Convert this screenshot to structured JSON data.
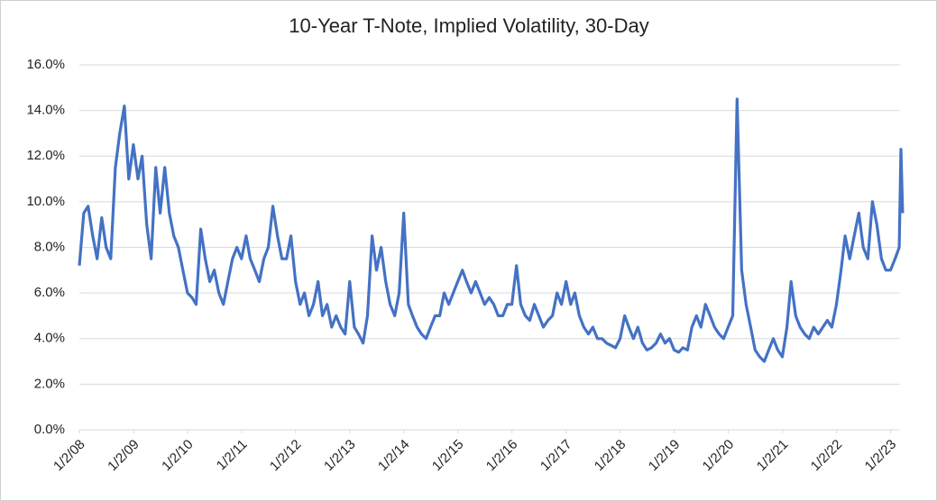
{
  "chart_data": {
    "type": "line",
    "title": "10-Year T-Note, Implied Volatility, 30-Day",
    "color": "#4472c4",
    "grid": true,
    "x": [
      "2008-01-02",
      "2008-02-01",
      "2008-03-01",
      "2008-04-01",
      "2008-05-01",
      "2008-06-01",
      "2008-07-01",
      "2008-08-01",
      "2008-09-01",
      "2008-10-01",
      "2008-11-01",
      "2008-12-01",
      "2009-01-01",
      "2009-02-01",
      "2009-03-01",
      "2009-04-01",
      "2009-05-01",
      "2009-06-01",
      "2009-07-01",
      "2009-08-01",
      "2009-09-01",
      "2009-10-01",
      "2009-11-01",
      "2009-12-01",
      "2010-01-01",
      "2010-02-01",
      "2010-03-01",
      "2010-04-01",
      "2010-05-01",
      "2010-06-01",
      "2010-07-01",
      "2010-08-01",
      "2010-09-01",
      "2010-10-01",
      "2010-11-01",
      "2010-12-01",
      "2011-01-01",
      "2011-02-01",
      "2011-03-01",
      "2011-04-01",
      "2011-05-01",
      "2011-06-01",
      "2011-07-01",
      "2011-08-01",
      "2011-09-01",
      "2011-10-01",
      "2011-11-01",
      "2011-12-01",
      "2012-01-01",
      "2012-02-01",
      "2012-03-01",
      "2012-04-01",
      "2012-05-01",
      "2012-06-01",
      "2012-07-01",
      "2012-08-01",
      "2012-09-01",
      "2012-10-01",
      "2012-11-01",
      "2012-12-01",
      "2013-01-01",
      "2013-02-01",
      "2013-03-01",
      "2013-04-01",
      "2013-05-01",
      "2013-06-01",
      "2013-07-01",
      "2013-08-01",
      "2013-09-01",
      "2013-10-01",
      "2013-11-01",
      "2013-12-01",
      "2014-01-01",
      "2014-02-01",
      "2014-03-01",
      "2014-04-01",
      "2014-05-01",
      "2014-06-01",
      "2014-07-01",
      "2014-08-01",
      "2014-09-01",
      "2014-10-01",
      "2014-11-01",
      "2014-12-01",
      "2015-01-01",
      "2015-02-01",
      "2015-03-01",
      "2015-04-01",
      "2015-05-01",
      "2015-06-01",
      "2015-07-01",
      "2015-08-01",
      "2015-09-01",
      "2015-10-01",
      "2015-11-01",
      "2015-12-01",
      "2016-01-01",
      "2016-02-01",
      "2016-03-01",
      "2016-04-01",
      "2016-05-01",
      "2016-06-01",
      "2016-07-01",
      "2016-08-01",
      "2016-09-01",
      "2016-10-01",
      "2016-11-01",
      "2016-12-01",
      "2017-01-01",
      "2017-02-01",
      "2017-03-01",
      "2017-04-01",
      "2017-05-01",
      "2017-06-01",
      "2017-07-01",
      "2017-08-01",
      "2017-09-01",
      "2017-10-01",
      "2017-11-01",
      "2017-12-01",
      "2018-01-01",
      "2018-02-01",
      "2018-03-01",
      "2018-04-01",
      "2018-05-01",
      "2018-06-01",
      "2018-07-01",
      "2018-08-01",
      "2018-09-01",
      "2018-10-01",
      "2018-11-01",
      "2018-12-01",
      "2019-01-01",
      "2019-02-01",
      "2019-03-01",
      "2019-04-01",
      "2019-05-01",
      "2019-06-01",
      "2019-07-01",
      "2019-08-01",
      "2019-09-01",
      "2019-10-01",
      "2019-11-01",
      "2019-12-01",
      "2020-01-01",
      "2020-02-01",
      "2020-03-01",
      "2020-04-01",
      "2020-05-01",
      "2020-06-01",
      "2020-07-01",
      "2020-08-01",
      "2020-09-01",
      "2020-10-01",
      "2020-11-01",
      "2020-12-01",
      "2021-01-01",
      "2021-02-01",
      "2021-03-01",
      "2021-04-01",
      "2021-05-01",
      "2021-06-01",
      "2021-07-01",
      "2021-08-01",
      "2021-09-01",
      "2021-10-01",
      "2021-11-01",
      "2021-12-01",
      "2022-01-01",
      "2022-02-01",
      "2022-03-01",
      "2022-04-01",
      "2022-05-01",
      "2022-06-01",
      "2022-07-01",
      "2022-08-01",
      "2022-09-01",
      "2022-10-01",
      "2022-11-01",
      "2022-12-01",
      "2023-01-01",
      "2023-02-01",
      "2023-03-01",
      "2023-03-13",
      "2023-03-24"
    ],
    "values": [
      7.2,
      9.5,
      9.8,
      8.5,
      7.5,
      9.3,
      8.0,
      7.5,
      11.5,
      13.0,
      14.2,
      11.0,
      12.5,
      11.0,
      12.0,
      9.0,
      7.5,
      11.5,
      9.5,
      11.5,
      9.5,
      8.5,
      8.0,
      7.0,
      6.0,
      5.8,
      5.5,
      8.8,
      7.5,
      6.5,
      7.0,
      6.0,
      5.5,
      6.5,
      7.5,
      8.0,
      7.5,
      8.5,
      7.5,
      7.0,
      6.5,
      7.5,
      8.0,
      9.8,
      8.5,
      7.5,
      7.5,
      8.5,
      6.5,
      5.5,
      6.0,
      5.0,
      5.5,
      6.5,
      5.0,
      5.5,
      4.5,
      5.0,
      4.5,
      4.2,
      6.5,
      4.5,
      4.2,
      3.8,
      5.0,
      8.5,
      7.0,
      8.0,
      6.5,
      5.5,
      5.0,
      6.0,
      9.5,
      5.5,
      5.0,
      4.5,
      4.2,
      4.0,
      4.5,
      5.0,
      5.0,
      6.0,
      5.5,
      6.0,
      6.5,
      7.0,
      6.5,
      6.0,
      6.5,
      6.0,
      5.5,
      5.8,
      5.5,
      5.0,
      5.0,
      5.5,
      5.5,
      7.2,
      5.5,
      5.0,
      4.8,
      5.5,
      5.0,
      4.5,
      4.8,
      5.0,
      6.0,
      5.5,
      6.5,
      5.5,
      6.0,
      5.0,
      4.5,
      4.2,
      4.5,
      4.0,
      4.0,
      3.8,
      3.7,
      3.6,
      4.0,
      5.0,
      4.5,
      4.0,
      4.5,
      3.8,
      3.5,
      3.6,
      3.8,
      4.2,
      3.8,
      4.0,
      3.5,
      3.4,
      3.6,
      3.5,
      4.5,
      5.0,
      4.5,
      5.5,
      5.0,
      4.5,
      4.2,
      4.0,
      4.5,
      5.0,
      14.5,
      7.0,
      5.5,
      4.5,
      3.5,
      3.2,
      3.0,
      3.5,
      4.0,
      3.5,
      3.2,
      4.5,
      6.5,
      5.0,
      4.5,
      4.2,
      4.0,
      4.5,
      4.2,
      4.5,
      4.8,
      4.5,
      5.5,
      7.0,
      8.5,
      7.5,
      8.5,
      9.5,
      8.0,
      7.5,
      10.0,
      9.0,
      7.5,
      7.0,
      7.0,
      7.5,
      8.0,
      12.3,
      9.5
    ],
    "xlim": [
      "2008-01-02",
      "2023-03-31"
    ],
    "xticks": [
      {
        "value": "2008-01-02",
        "label": "1/2/08"
      },
      {
        "value": "2009-01-02",
        "label": "1/2/09"
      },
      {
        "value": "2010-01-02",
        "label": "1/2/10"
      },
      {
        "value": "2011-01-02",
        "label": "1/2/11"
      },
      {
        "value": "2012-01-02",
        "label": "1/2/12"
      },
      {
        "value": "2013-01-02",
        "label": "1/2/13"
      },
      {
        "value": "2014-01-02",
        "label": "1/2/14"
      },
      {
        "value": "2015-01-02",
        "label": "1/2/15"
      },
      {
        "value": "2016-01-02",
        "label": "1/2/16"
      },
      {
        "value": "2017-01-02",
        "label": "1/2/17"
      },
      {
        "value": "2018-01-02",
        "label": "1/2/18"
      },
      {
        "value": "2019-01-02",
        "label": "1/2/19"
      },
      {
        "value": "2020-01-02",
        "label": "1/2/20"
      },
      {
        "value": "2021-01-02",
        "label": "1/2/21"
      },
      {
        "value": "2022-01-02",
        "label": "1/2/22"
      },
      {
        "value": "2023-01-02",
        "label": "1/2/23"
      }
    ],
    "ylim": [
      0,
      16
    ],
    "yticks": [
      {
        "value": 0,
        "label": "0.0%"
      },
      {
        "value": 2,
        "label": "2.0%"
      },
      {
        "value": 4,
        "label": "4.0%"
      },
      {
        "value": 6,
        "label": "6.0%"
      },
      {
        "value": 8,
        "label": "8.0%"
      },
      {
        "value": 10,
        "label": "10.0%"
      },
      {
        "value": 12,
        "label": "12.0%"
      },
      {
        "value": 14,
        "label": "14.0%"
      },
      {
        "value": 16,
        "label": "16.0%"
      }
    ]
  }
}
